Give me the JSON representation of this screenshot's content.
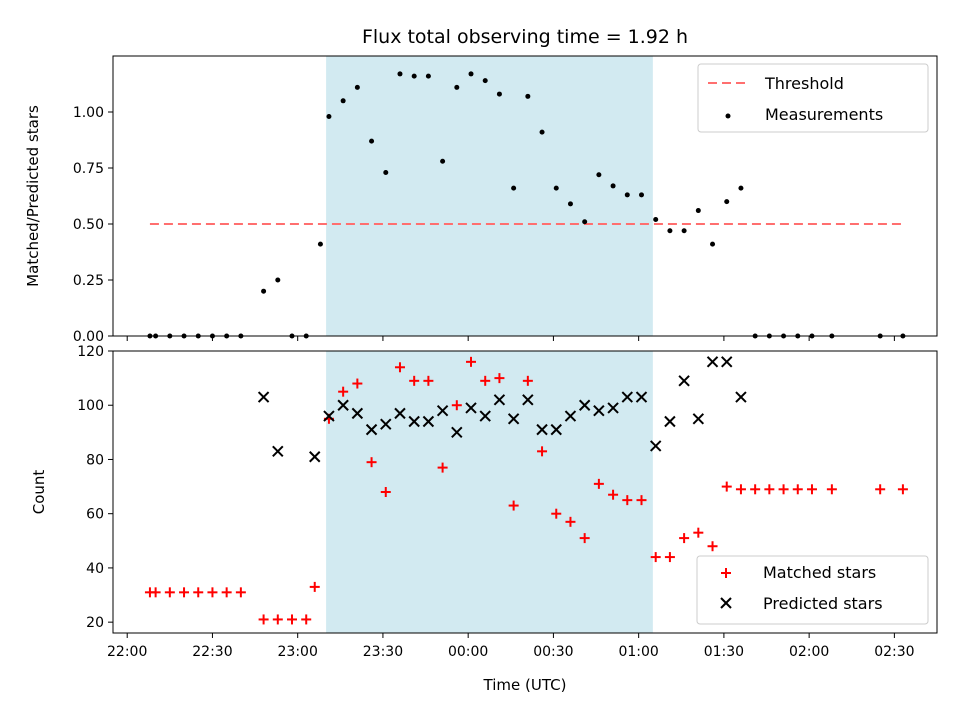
{
  "figure": {
    "title": "Flux total observing time = 1.92 h",
    "xlabel": "Time (UTC)"
  },
  "colors": {
    "observing_span": "#add8e6",
    "threshold": "#ff6f6f",
    "measurements": "#000000",
    "matched": "#ff0000",
    "predicted": "#000000"
  },
  "chart_data": [
    {
      "type": "scatter",
      "ylabel": "Matched/Predicted stars",
      "xlim": [
        "21:55",
        "02:45"
      ],
      "ylim": [
        0,
        1.25
      ],
      "yticks": [
        "0.00",
        "0.25",
        "0.50",
        "0.75",
        "1.00"
      ],
      "grid": false,
      "legend_position": "top-right",
      "observing_span": [
        "23:10",
        "01:05"
      ],
      "threshold": {
        "name": "Threshold",
        "y": 0.5,
        "x_range": [
          "22:08",
          "02:33"
        ]
      },
      "series": [
        {
          "name": "Measurements",
          "x": [
            "22:08",
            "22:10",
            "22:15",
            "22:20",
            "22:25",
            "22:30",
            "22:35",
            "22:40",
            "22:48",
            "22:53",
            "22:58",
            "23:03",
            "23:08",
            "23:11",
            "23:16",
            "23:21",
            "23:26",
            "23:31",
            "23:36",
            "23:41",
            "23:46",
            "23:51",
            "23:56",
            "24:01",
            "24:06",
            "24:11",
            "24:16",
            "24:21",
            "24:26",
            "24:31",
            "24:36",
            "24:41",
            "24:46",
            "24:51",
            "24:56",
            "25:01",
            "25:06",
            "25:11",
            "25:16",
            "25:21",
            "25:26",
            "25:31",
            "25:36",
            "25:41",
            "25:46",
            "25:51",
            "25:56",
            "26:01",
            "26:08",
            "26:25",
            "26:33"
          ],
          "y": [
            0,
            0,
            0,
            0,
            0,
            0,
            0,
            0,
            0.2,
            0.25,
            0,
            0,
            0.41,
            0.98,
            1.05,
            1.11,
            0.87,
            0.73,
            1.17,
            1.16,
            1.16,
            0.78,
            1.11,
            1.17,
            1.14,
            1.08,
            0.66,
            1.07,
            0.91,
            0.66,
            0.59,
            0.51,
            0.72,
            0.67,
            0.63,
            0.63,
            0.52,
            0.47,
            0.47,
            0.56,
            0.41,
            0.6,
            0.66,
            0,
            0,
            0,
            0,
            0,
            0,
            0,
            0
          ]
        }
      ]
    },
    {
      "type": "scatter",
      "ylabel": "Count",
      "xlim": [
        "21:55",
        "02:45"
      ],
      "ylim": [
        16,
        120
      ],
      "yticks": [
        "20",
        "40",
        "60",
        "80",
        "100",
        "120"
      ],
      "xticks": [
        "22:00",
        "22:30",
        "23:00",
        "23:30",
        "00:00",
        "00:30",
        "01:00",
        "01:30",
        "02:00",
        "02:30"
      ],
      "grid": false,
      "legend_position": "bottom-right",
      "observing_span": [
        "23:10",
        "01:05"
      ],
      "series": [
        {
          "name": "Matched stars",
          "marker": "+",
          "x": [
            "22:08",
            "22:10",
            "22:15",
            "22:20",
            "22:25",
            "22:30",
            "22:35",
            "22:40",
            "22:48",
            "22:53",
            "22:58",
            "23:03",
            "23:06",
            "23:11",
            "23:16",
            "23:21",
            "23:26",
            "23:31",
            "23:36",
            "23:41",
            "23:46",
            "23:51",
            "23:56",
            "24:01",
            "24:06",
            "24:11",
            "24:16",
            "24:21",
            "24:26",
            "24:31",
            "24:36",
            "24:41",
            "24:46",
            "24:51",
            "24:56",
            "25:01",
            "25:06",
            "25:11",
            "25:16",
            "25:21",
            "25:26",
            "25:31",
            "25:36",
            "25:41",
            "25:46",
            "25:51",
            "25:56",
            "26:01",
            "26:08",
            "26:25",
            "26:33"
          ],
          "y": [
            31,
            31,
            31,
            31,
            31,
            31,
            31,
            31,
            21,
            21,
            21,
            21,
            33,
            95,
            105,
            108,
            79,
            68,
            114,
            109,
            109,
            77,
            100,
            116,
            109,
            110,
            63,
            109,
            83,
            60,
            57,
            51,
            71,
            67,
            65,
            65,
            44,
            44,
            51,
            53,
            48,
            70,
            69,
            69,
            69,
            69,
            69,
            69,
            69,
            69,
            69
          ]
        },
        {
          "name": "Predicted stars",
          "marker": "x",
          "x": [
            "22:48",
            "22:53",
            "23:06",
            "23:11",
            "23:16",
            "23:21",
            "23:26",
            "23:31",
            "23:36",
            "23:41",
            "23:46",
            "23:51",
            "23:56",
            "24:01",
            "24:06",
            "24:11",
            "24:16",
            "24:21",
            "24:26",
            "24:31",
            "24:36",
            "24:41",
            "24:46",
            "24:51",
            "24:56",
            "25:01",
            "25:06",
            "25:11",
            "25:16",
            "25:21",
            "25:26",
            "25:31",
            "25:36"
          ],
          "y": [
            103,
            83,
            81,
            96,
            100,
            97,
            91,
            93,
            97,
            94,
            94,
            98,
            90,
            99,
            96,
            102,
            95,
            102,
            91,
            91,
            96,
            100,
            98,
            99,
            103,
            103,
            85,
            94,
            109,
            95,
            116,
            116,
            103
          ]
        }
      ]
    }
  ]
}
